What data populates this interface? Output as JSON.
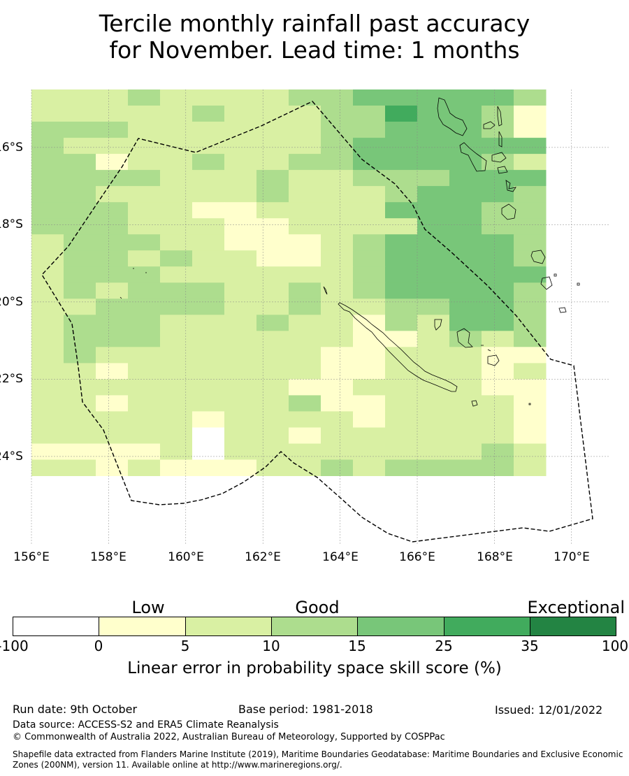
{
  "title": {
    "line1": "Tercile monthly rainfall past accuracy",
    "line2": "for November. Lead time: 1 months"
  },
  "map": {
    "longitude_labels": [
      "156°E",
      "158°E",
      "160°E",
      "162°E",
      "164°E",
      "166°E",
      "168°E",
      "170°E"
    ],
    "latitude_labels": [
      "16°S",
      "18°S",
      "20°S",
      "22°S",
      "24°S"
    ],
    "extent": {
      "lon_min": 156.0,
      "lon_max": 171.0,
      "lat_north": -14.5,
      "lat_south": -26.3
    },
    "cell_size_deg": 0.8333,
    "skill_grid_categories": [
      "2223222233444443",
      "2222232223354431",
      "3332222223344431",
      "3222222223444444",
      "3312232233444432",
      "3333222322333444",
      "3322222322234443",
      "3332211222244433",
      "3332221122224433",
      "2333221112344443",
      "2332322112344443",
      "2333222222344444",
      "2323332232344443",
      "2233332232233443",
      "2333222322132443",
      "2333222222112323",
      "2322222221122211",
      "2212222221122212",
      "2222222211222211",
      "2212222231122221",
      "2222212222122221",
      "2222202212222221",
      "1111202222222232",
      "2212111223233332"
    ],
    "colors": {
      "land_outline": "#000000",
      "boundary": "#000000",
      "grid": "#888888"
    }
  },
  "colorbar": {
    "categories": [
      "Low",
      "Good",
      "Exceptional"
    ],
    "ticks": [
      "-100",
      "0",
      "5",
      "10",
      "15",
      "25",
      "35",
      "100"
    ],
    "bins": [
      {
        "from": -100,
        "to": 0,
        "color": "#ffffff"
      },
      {
        "from": 0,
        "to": 5,
        "color": "#ffffcc"
      },
      {
        "from": 5,
        "to": 10,
        "color": "#d9f0a3"
      },
      {
        "from": 10,
        "to": 15,
        "color": "#addd8e"
      },
      {
        "from": 15,
        "to": 25,
        "color": "#78c679"
      },
      {
        "from": 25,
        "to": 35,
        "color": "#41ab5d"
      },
      {
        "from": 35,
        "to": 100,
        "color": "#238443"
      }
    ],
    "label": "Linear error in probability space skill score (%)"
  },
  "footer": {
    "run_date": "Run date: 9th October",
    "base_period": "Base period: 1981-2018",
    "issued": "Issued: 12/01/2022",
    "data_source": "Data source: ACCESS-S2 and ERA5 Climate Reanalysis",
    "copyright": "© Commonwealth of Australia 2022, Australian Bureau of Meteorology, Supported by COSPPac",
    "shapefile": "Shapefile data extracted from Flanders Marine Institute (2019), Maritime Boundaries Geodatabase: Maritime Boundaries and Exclusive Economic Zones (200NM), version 11. Available online at http://www.marineregions.org/."
  }
}
